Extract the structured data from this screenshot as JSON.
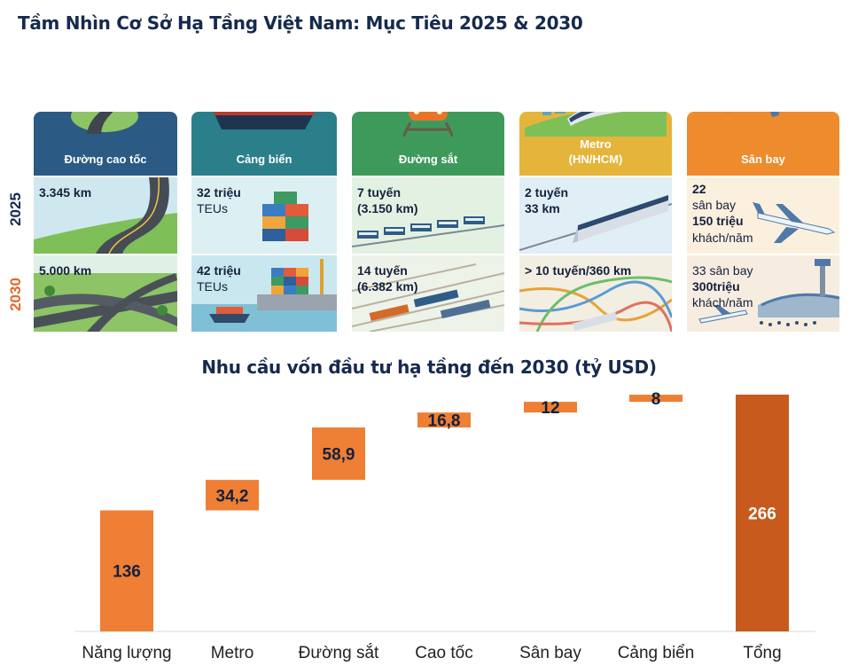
{
  "title": "Tầm Nhìn Cơ Sở Hạ Tầng Việt Nam: Mục Tiêu 2025 & 2030",
  "years": [
    "2025",
    "2030"
  ],
  "cards": [
    {
      "name": "Đường cao tốc",
      "color": "#2b5a84",
      "v2025": [
        "3.345 km"
      ],
      "v2030": [
        "5.000 km"
      ]
    },
    {
      "name": "Cảng biển",
      "color": "#2a7f8a",
      "v2025": [
        "32 triệu",
        "TEUs"
      ],
      "v2030": [
        "42 triệu",
        "TEUs"
      ]
    },
    {
      "name": "Đường sắt",
      "color": "#3e9a5b",
      "v2025": [
        "7 tuyến",
        "(3.150 km)"
      ],
      "v2030": [
        "14 tuyến",
        "(6.382 km)"
      ]
    },
    {
      "name_line1": "Metro",
      "name_line2": "(HN/HCM)",
      "color": "#e4b53a",
      "v2025": [
        "2 tuyến",
        "33 km"
      ],
      "v2030": [
        "> 10 tuyến/360 km"
      ]
    },
    {
      "name": "Sân bay",
      "color": "#ee8b2d",
      "v2025": [
        "22",
        "sân bay",
        "150 triệu",
        "khách/năm"
      ],
      "v2030": [
        "33 sân bay",
        "300triệu",
        "khách/năm"
      ]
    }
  ],
  "chart_data": {
    "type": "waterfall",
    "title": "Nhu cầu vốn đầu tư hạ tầng đến 2030 (tỷ USD)",
    "categories": [
      "Năng lượng",
      "Metro",
      "Đường sắt",
      "Cao tốc",
      "Sân bay",
      "Cảng biển",
      "Tổng"
    ],
    "values": [
      136,
      34.2,
      58.9,
      16.8,
      12,
      8,
      266
    ],
    "labels": [
      "136",
      "34,2",
      "58,9",
      "16,8",
      "12",
      "8",
      "266"
    ],
    "total_index": 6,
    "colors": {
      "step": "#ee7f35",
      "total": "#c75a1c"
    }
  }
}
